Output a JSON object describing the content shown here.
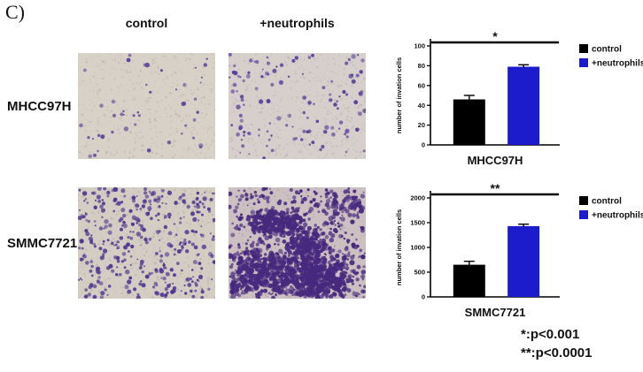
{
  "panel_label": "C)",
  "columns": [
    "control",
    "+neutrophils"
  ],
  "rows": [
    {
      "label": "MHCC97H"
    },
    {
      "label": "SMMC7721"
    }
  ],
  "micrographs": [
    {
      "name": "mhcc97h-control",
      "seed": 11,
      "count": 48,
      "clustered": false,
      "bg": "#d8d1c8",
      "dot": "#5c4198",
      "noise": "#b9b1a6"
    },
    {
      "name": "mhcc97h-neutrophils",
      "seed": 22,
      "count": 125,
      "clustered": false,
      "bg": "#d6cfcb",
      "dot": "#59409b",
      "noise": "#b6aeab"
    },
    {
      "name": "smmc7721-control",
      "seed": 33,
      "count": 380,
      "clustered": false,
      "bg": "#d4cdc4",
      "dot": "#533790",
      "noise": "#b5ada2"
    },
    {
      "name": "smmc7721-neutrophils",
      "seed": 44,
      "count": 520,
      "clustered": true,
      "bg": "#cdc0c3",
      "dot": "#47297e",
      "noise": "#ab9da6"
    }
  ],
  "chart_data": [
    {
      "type": "bar",
      "title": "MHCC97H",
      "ylabel": "number of invation cells",
      "categories": [
        "control",
        "+neutrophils"
      ],
      "values": [
        46,
        79
      ],
      "errors": [
        4,
        2
      ],
      "ylim": [
        0,
        100
      ],
      "yticks": [
        0,
        20,
        40,
        60,
        80,
        100
      ],
      "significance": "*",
      "legend": [
        {
          "label": "control",
          "color": "#000000"
        },
        {
          "label": "+neutrophils",
          "color": "#1c1ccc"
        }
      ]
    },
    {
      "type": "bar",
      "title": "SMMC7721",
      "ylabel": "number of invation cells",
      "categories": [
        "control",
        "+neutrophils"
      ],
      "values": [
        650,
        1430
      ],
      "errors": [
        70,
        40
      ],
      "ylim": [
        0,
        2000
      ],
      "yticks": [
        0,
        500,
        1000,
        1500,
        2000
      ],
      "significance": "**",
      "legend": [
        {
          "label": "control",
          "color": "#000000"
        },
        {
          "label": "+neutrophils",
          "color": "#1c1ccc"
        }
      ]
    }
  ],
  "footnotes": [
    "*:p<0.001",
    "**:p<0.0001"
  ]
}
